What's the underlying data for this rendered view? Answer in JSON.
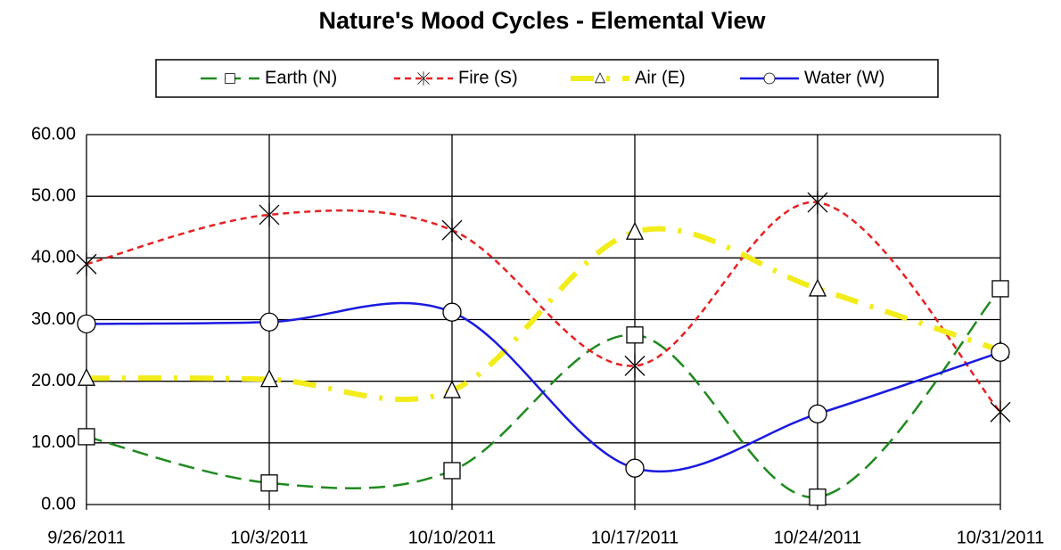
{
  "chart_data": {
    "type": "line",
    "title": "Nature's Mood Cycles  - Elemental View",
    "x": [
      "9/26/2011",
      "10/3/2011",
      "10/10/2011",
      "10/17/2011",
      "10/24/2011",
      "10/31/2011"
    ],
    "series": [
      {
        "name": "Earth (N)",
        "color": "#1f8a1f",
        "marker": "square",
        "dash": "dashed",
        "values": [
          11,
          3.5,
          5.5,
          27.5,
          1.2,
          35
        ]
      },
      {
        "name": "Fire (S)",
        "color": "#e52222",
        "marker": "star",
        "dash": "dotted",
        "values": [
          39,
          47,
          44.5,
          22.5,
          49,
          15
        ]
      },
      {
        "name": "Air (E)",
        "color": "#f2ec1a",
        "marker": "triangle",
        "dash": "dashdot",
        "values": [
          20.5,
          20.3,
          18.5,
          44.2,
          35,
          25
        ]
      },
      {
        "name": "Water (W)",
        "color": "#1a1ae0",
        "marker": "circle",
        "dash": "solid",
        "values": [
          29.3,
          29.6,
          31.2,
          5.9,
          14.7,
          24.7
        ]
      }
    ],
    "ylim": [
      0,
      60
    ],
    "yticks": [
      {
        "value": 0,
        "label": "0.00"
      },
      {
        "value": 10,
        "label": "10.00"
      },
      {
        "value": 20,
        "label": "20.00"
      },
      {
        "value": 30,
        "label": "30.00"
      },
      {
        "value": 40,
        "label": "40.00"
      },
      {
        "value": 50,
        "label": "50.00"
      },
      {
        "value": 60,
        "label": "60.00"
      }
    ],
    "grid": true,
    "smooth": true,
    "legend": "top"
  }
}
